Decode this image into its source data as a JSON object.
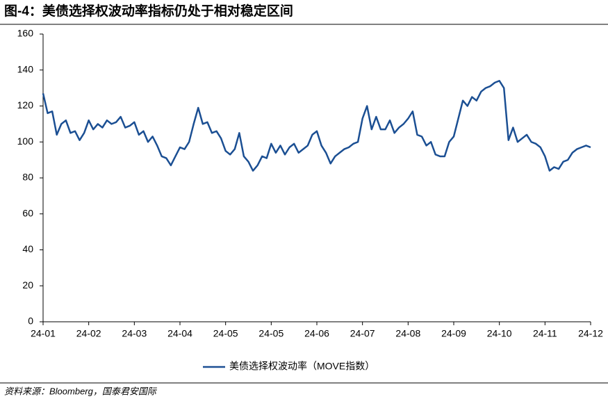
{
  "chart_data": {
    "type": "line",
    "title": "图-4：美债选择权波动率指标仍处于相对稳定区间",
    "source": "资料来源：Bloomberg，国泰君安国际",
    "categories": [
      "24-01",
      null,
      null,
      null,
      null,
      null,
      null,
      null,
      null,
      null,
      "24-02",
      null,
      null,
      null,
      null,
      null,
      null,
      null,
      null,
      null,
      "24-03",
      null,
      null,
      null,
      null,
      null,
      null,
      null,
      null,
      null,
      "24-04",
      null,
      null,
      null,
      null,
      null,
      null,
      null,
      null,
      null,
      "24-05",
      null,
      null,
      null,
      null,
      null,
      null,
      null,
      null,
      null,
      "24-05",
      null,
      null,
      null,
      null,
      null,
      null,
      null,
      null,
      null,
      "24-06",
      null,
      null,
      null,
      null,
      null,
      null,
      null,
      null,
      null,
      "24-07",
      null,
      null,
      null,
      null,
      null,
      null,
      null,
      null,
      null,
      "24-08",
      null,
      null,
      null,
      null,
      null,
      null,
      null,
      null,
      null,
      "24-09",
      null,
      null,
      null,
      null,
      null,
      null,
      null,
      null,
      null,
      "24-10",
      null,
      null,
      null,
      null,
      null,
      null,
      null,
      null,
      null,
      "24-11",
      null,
      null,
      null,
      null,
      null,
      null,
      null,
      null,
      null,
      "24-12"
    ],
    "series": [
      {
        "name": "美债选择权波动率（MOVE指数）",
        "color": "#1b4f93",
        "values": [
          127,
          116,
          117,
          104,
          110,
          112,
          105,
          106,
          101,
          105,
          112,
          107,
          110,
          108,
          112,
          110,
          111,
          114,
          108,
          109,
          111,
          104,
          106,
          100,
          103,
          98,
          92,
          91,
          87,
          92,
          97,
          96,
          100,
          110,
          119,
          110,
          111,
          105,
          106,
          102,
          95,
          93,
          96,
          105,
          92,
          89,
          84,
          87,
          92,
          91,
          99,
          94,
          98,
          93,
          97,
          99,
          94,
          96,
          98,
          104,
          106,
          98,
          94,
          88,
          92,
          94,
          96,
          97,
          99,
          100,
          113,
          120,
          107,
          114,
          107,
          107,
          112,
          105,
          108,
          110,
          113,
          117,
          104,
          103,
          98,
          100,
          93,
          92,
          92,
          100,
          103,
          113,
          123,
          120,
          125,
          123,
          128,
          130,
          131,
          133,
          134,
          130,
          101,
          108,
          100,
          102,
          104,
          100,
          99,
          97,
          92,
          84,
          86,
          85,
          89,
          90,
          94,
          96,
          97,
          98,
          97
        ]
      }
    ],
    "ylim": [
      0,
      160
    ],
    "yticks": [
      0,
      20,
      40,
      60,
      80,
      100,
      120,
      140,
      160
    ],
    "grid": false,
    "legend": "bottom"
  }
}
